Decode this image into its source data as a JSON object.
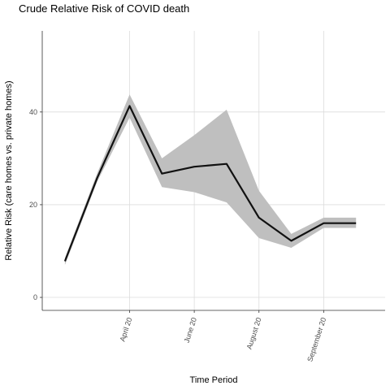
{
  "chart_data": {
    "type": "line",
    "title": "Crude Relative Risk of COVID death",
    "xlabel": "Time Period",
    "ylabel": "Relative Risk (care homes vs. private homes)",
    "x_tick_labels": [
      "April 20",
      "June 20",
      "August 20",
      "September 20"
    ],
    "x_tick_positions": [
      3,
      5,
      7,
      9
    ],
    "y_ticks": [
      0,
      20,
      40
    ],
    "xlim": [
      0.3,
      10.9
    ],
    "ylim": [
      -2.8,
      57.5
    ],
    "grid": true,
    "series": [
      {
        "x": [
          1,
          2,
          3,
          4,
          5,
          6,
          7,
          8,
          9,
          10
        ],
        "values": [
          7.8,
          25.8,
          41.3,
          26.7,
          28.2,
          28.8,
          17.2,
          12.2,
          16.0,
          16.0
        ],
        "lower": [
          7.0,
          25.0,
          38.8,
          23.8,
          22.7,
          20.5,
          12.8,
          10.7,
          15.0,
          15.0
        ],
        "upper": [
          8.5,
          26.8,
          43.8,
          30.0,
          35.0,
          40.5,
          23.0,
          13.7,
          17.2,
          17.2
        ]
      }
    ],
    "line_color": "#111111",
    "band_color": "#bfbfbf"
  }
}
